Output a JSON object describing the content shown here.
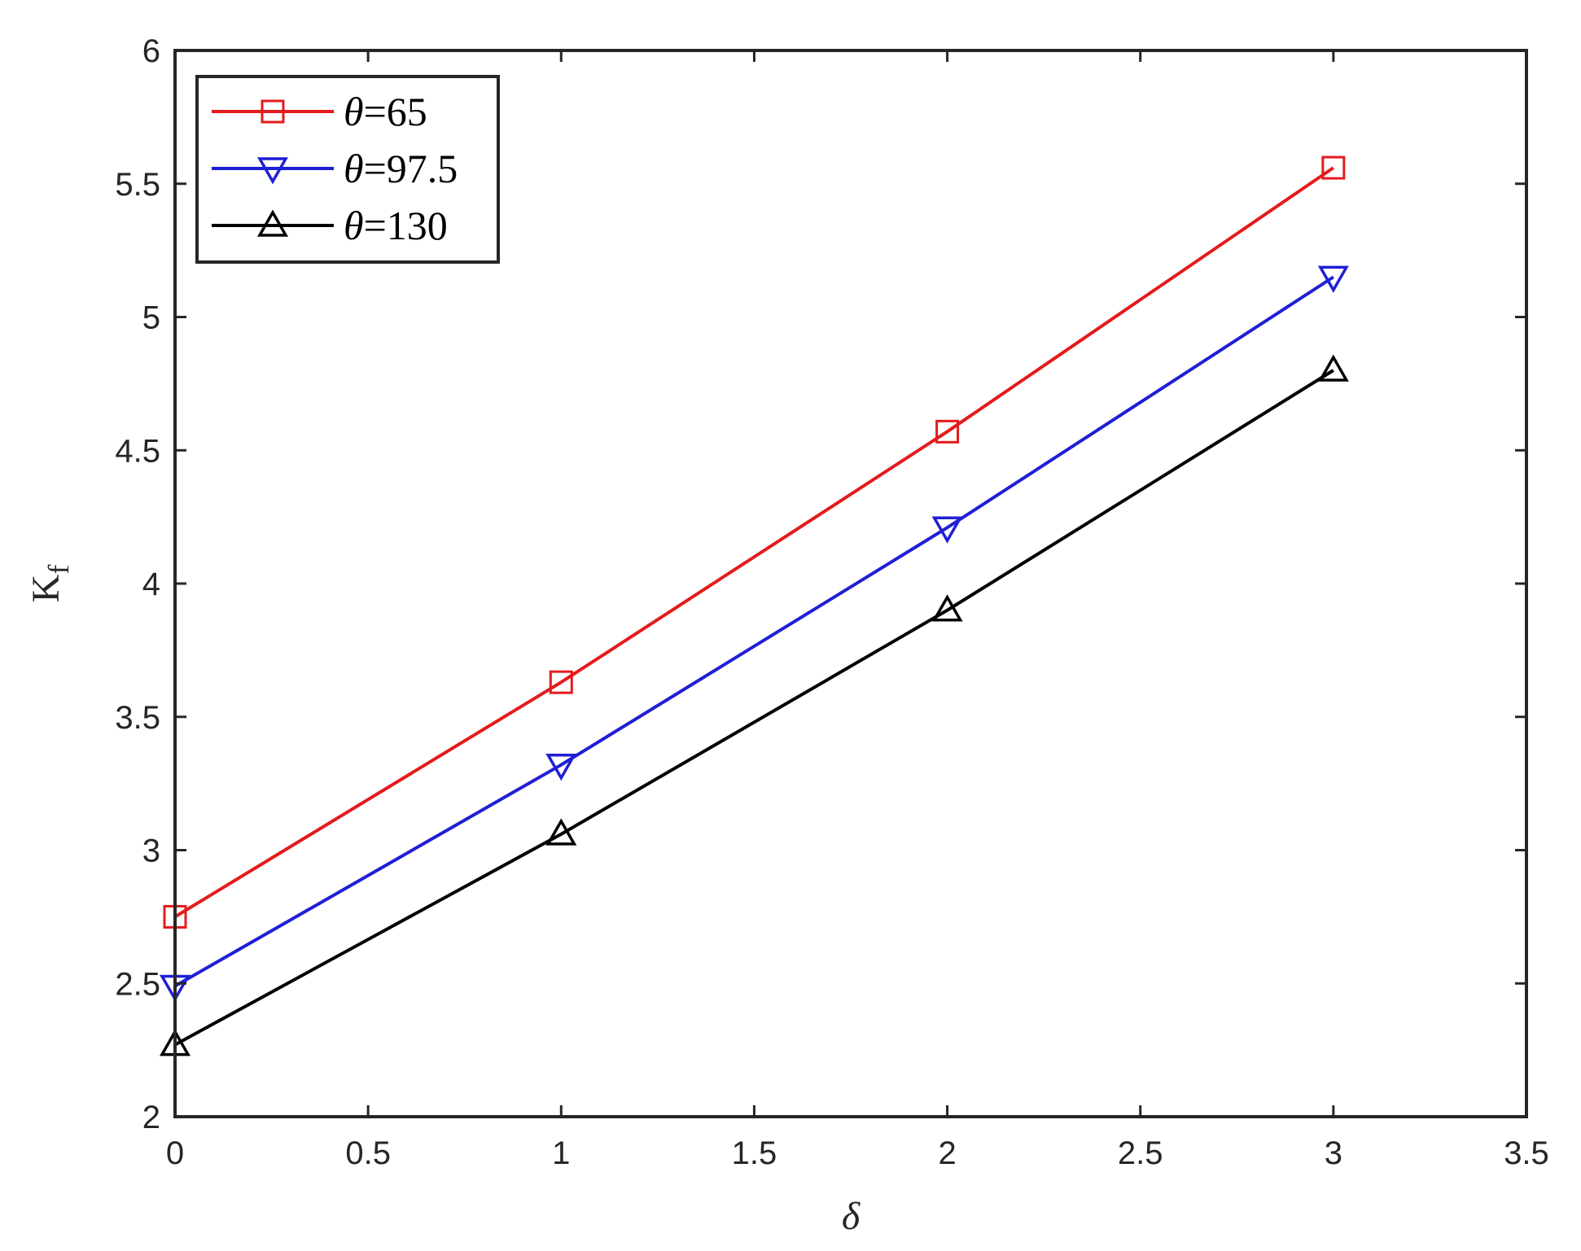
{
  "chart_data": {
    "type": "line",
    "title": "",
    "xlabel": "δ",
    "ylabel": "K",
    "ylabel_subscript": "f",
    "xlim": [
      0,
      3.5
    ],
    "ylim": [
      2,
      6
    ],
    "xticks": [
      "0",
      "0.5",
      "1",
      "1.5",
      "2",
      "2.5",
      "3",
      "3.5"
    ],
    "yticks": [
      "2",
      "2.5",
      "3",
      "3.5",
      "4",
      "4.5",
      "5",
      "5.5",
      "6"
    ],
    "grid": false,
    "legend_position": "top-left",
    "x": [
      0,
      1,
      2,
      3
    ],
    "series": [
      {
        "name": "θ=65",
        "theta_symbol": "θ",
        "name_rest": "=65",
        "color": "#e41a1c",
        "marker": "square",
        "values": [
          2.75,
          3.63,
          4.57,
          5.56
        ]
      },
      {
        "name": "θ=97.5",
        "theta_symbol": "θ",
        "name_rest": "=97.5",
        "color": "#1f1fd6",
        "marker": "triangle-down",
        "values": [
          2.49,
          3.32,
          4.21,
          5.15
        ]
      },
      {
        "name": "θ=130",
        "theta_symbol": "θ",
        "name_rest": "=130",
        "color": "#000000",
        "marker": "triangle-up",
        "values": [
          2.27,
          3.06,
          3.9,
          4.8
        ]
      }
    ]
  }
}
